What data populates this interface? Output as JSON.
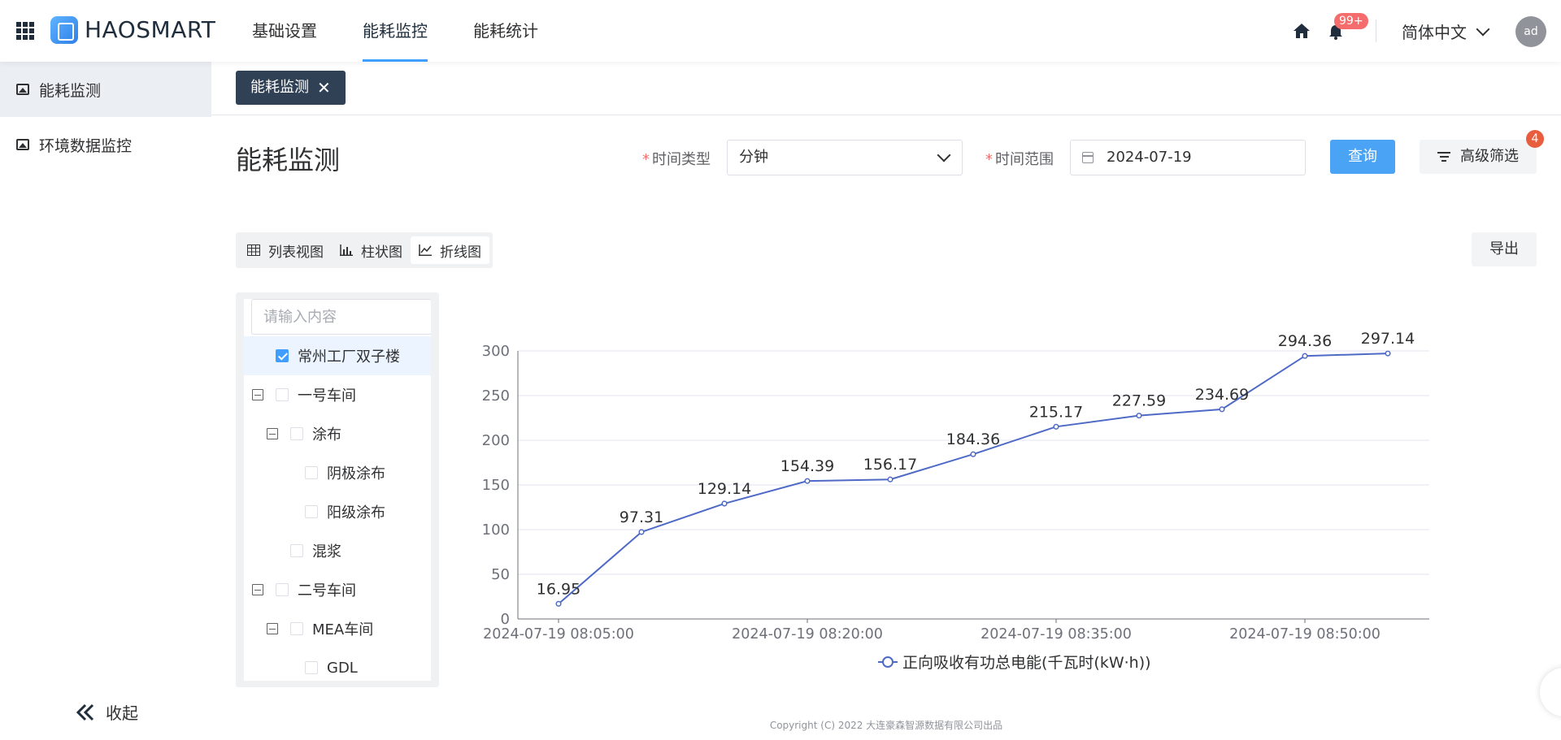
{
  "header": {
    "brand": "HAOSMART",
    "nav": [
      "基础设置",
      "能耗监控",
      "能耗统计"
    ],
    "notifications_badge": "99+",
    "language": "简体中文",
    "avatar": "ad"
  },
  "sidebar": {
    "items": [
      "能耗监测",
      "环境数据监控"
    ],
    "collapse_label": "收起"
  },
  "tabs": {
    "open_tab": "能耗监测",
    "close_symbol": "✕"
  },
  "page": {
    "title": "能耗监测",
    "time_type_label": "时间类型",
    "time_type_value": "分钟",
    "time_range_label": "时间范围",
    "time_range_value": "2024-07-19",
    "query_button": "查询",
    "filter_button": "高级筛选",
    "filter_badge": "4",
    "required_mark": "*",
    "export_button": "导出",
    "view_modes": [
      "列表视图",
      "柱状图",
      "折线图"
    ],
    "active_view": "折线图"
  },
  "tree": {
    "search_placeholder": "请输入内容",
    "nodes": [
      {
        "label": "常州工厂双子楼",
        "checked": true
      },
      {
        "label": "一号车间",
        "checked": false
      },
      {
        "label": "涂布",
        "checked": false
      },
      {
        "label": "阴极涂布",
        "checked": false
      },
      {
        "label": "阳级涂布",
        "checked": false
      },
      {
        "label": "混浆",
        "checked": false
      },
      {
        "label": "二号车间",
        "checked": false
      },
      {
        "label": "MEA车间",
        "checked": false
      },
      {
        "label": "GDL",
        "checked": false
      }
    ]
  },
  "chart_data": {
    "type": "line",
    "x": [
      "2024-07-19 08:05:00",
      "2024-07-19 08:10:00",
      "2024-07-19 08:15:00",
      "2024-07-19 08:20:00",
      "2024-07-19 08:25:00",
      "2024-07-19 08:30:00",
      "2024-07-19 08:35:00",
      "2024-07-19 08:40:00",
      "2024-07-19 08:45:00",
      "2024-07-19 08:50:00",
      "2024-07-19 08:55:00"
    ],
    "x_tick_labels": [
      "2024-07-19 08:05:00",
      "2024-07-19 08:20:00",
      "2024-07-19 08:35:00",
      "2024-07-19 08:50:00"
    ],
    "series": [
      {
        "name": "正向吸收有功总电能(千瓦时(kW·h))",
        "values": [
          16.95,
          97.31,
          129.14,
          154.39,
          156.17,
          184.36,
          215.17,
          227.59,
          234.69,
          294.36,
          297.14
        ]
      }
    ],
    "ylim": [
      0,
      300
    ],
    "y_ticks": [
      0,
      50,
      100,
      150,
      200,
      250,
      300
    ],
    "grid": true,
    "legend": "bottom",
    "color": "#4e6ac6"
  },
  "footer": {
    "copyright": "Copyright (C) 2022 大连豪森智源数据有限公司出品"
  }
}
